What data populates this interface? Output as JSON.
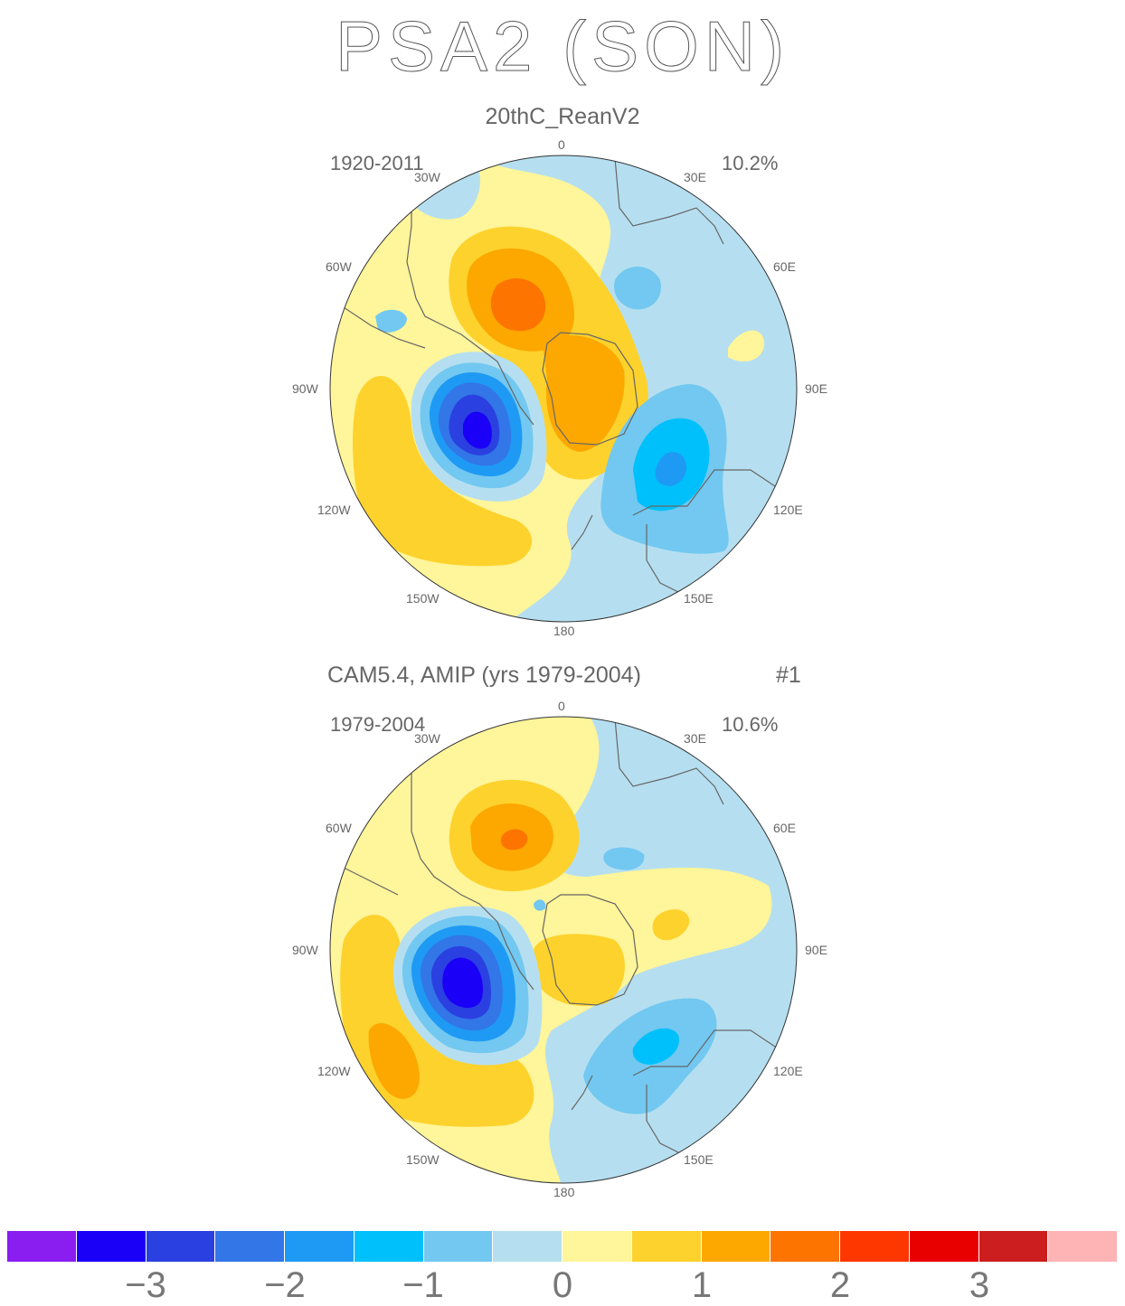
{
  "title": "PSA2 (SON)",
  "panels": [
    {
      "subtitle": "20thC_ReanV2",
      "years": "1920-2011",
      "variance": "10.2%"
    },
    {
      "subtitle": "CAM5.4, AMIP (yrs 1979-2004)",
      "run": "#1",
      "years": "1979-2004",
      "variance": "10.6%"
    }
  ],
  "lon_labels": [
    "0",
    "30E",
    "60E",
    "90E",
    "120E",
    "150E",
    "180",
    "150W",
    "120W",
    "90W",
    "60W",
    "30W"
  ],
  "colorbar": {
    "colors": [
      "#8a1df0",
      "#1a00f6",
      "#2b40e0",
      "#3276e8",
      "#1e9af4",
      "#00c0fb",
      "#72c8f0",
      "#b5dff0",
      "#fff59a",
      "#fdd22c",
      "#fca800",
      "#fd7400",
      "#fe3700",
      "#e80000",
      "#cc1e1e",
      "#feb4b4"
    ],
    "labels": [
      "−3",
      "−2",
      "−1",
      "0",
      "1",
      "2",
      "3"
    ]
  }
}
